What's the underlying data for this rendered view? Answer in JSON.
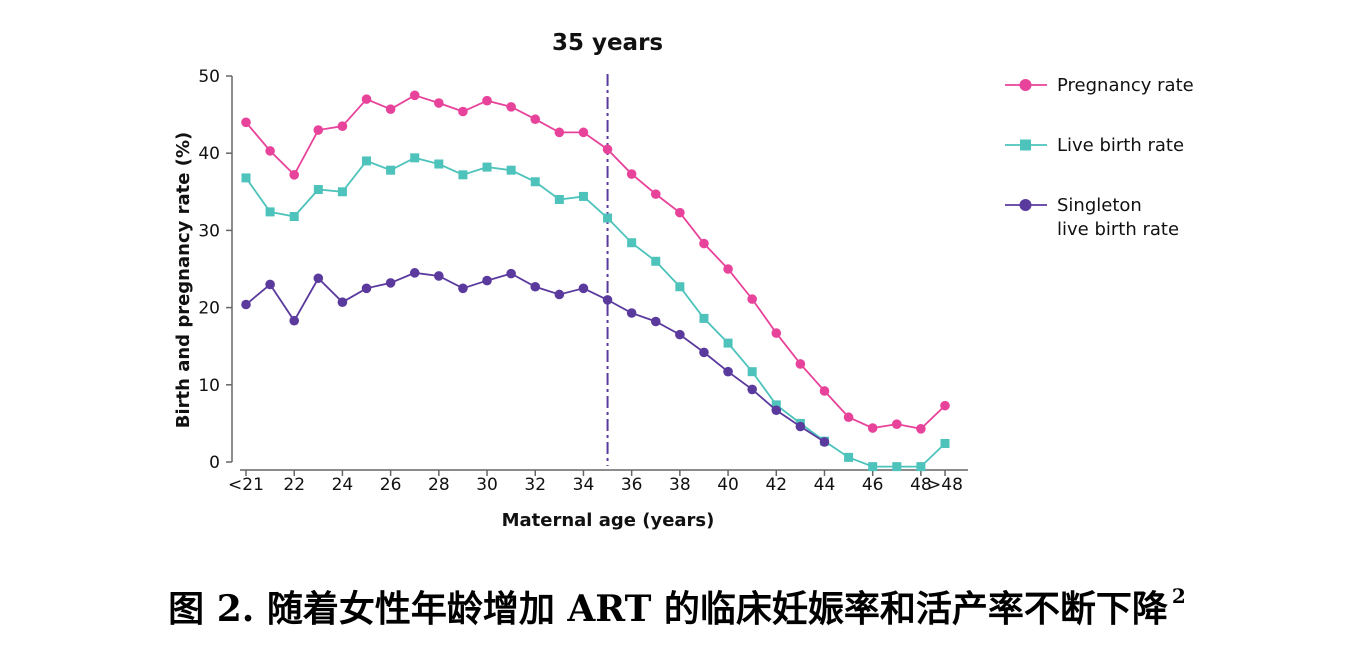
{
  "chart_data": {
    "type": "line",
    "xlabel": "Maternal age (years)",
    "ylabel": "Birth and pregnancy rate (%)",
    "ylim": [
      0,
      50
    ],
    "yticks": [
      0,
      10,
      20,
      30,
      40,
      50
    ],
    "x": [
      20,
      21,
      22,
      23,
      24,
      25,
      26,
      27,
      28,
      29,
      30,
      31,
      32,
      33,
      34,
      35,
      36,
      37,
      38,
      39,
      40,
      41,
      42,
      43,
      44,
      45,
      46,
      47,
      48,
      49
    ],
    "xticks": [
      {
        "x": 20,
        "label": "<21"
      },
      {
        "x": 22,
        "label": "22"
      },
      {
        "x": 24,
        "label": "24"
      },
      {
        "x": 26,
        "label": "26"
      },
      {
        "x": 28,
        "label": "28"
      },
      {
        "x": 30,
        "label": "30"
      },
      {
        "x": 32,
        "label": "32"
      },
      {
        "x": 34,
        "label": "34"
      },
      {
        "x": 36,
        "label": "36"
      },
      {
        "x": 38,
        "label": "38"
      },
      {
        "x": 40,
        "label": "40"
      },
      {
        "x": 42,
        "label": "42"
      },
      {
        "x": 44,
        "label": "44"
      },
      {
        "x": 46,
        "label": "46"
      },
      {
        "x": 48,
        "label": "48"
      },
      {
        "x": 49,
        "label": ">48"
      }
    ],
    "series": [
      {
        "name": "Pregnancy  rate",
        "color": "#e8439a",
        "marker": "circle",
        "values": [
          44.0,
          40.3,
          37.2,
          43.0,
          43.5,
          47.0,
          45.7,
          47.5,
          46.5,
          45.4,
          46.8,
          46.0,
          44.4,
          42.7,
          42.7,
          40.5,
          37.3,
          34.7,
          32.3,
          28.3,
          25.0,
          21.1,
          16.7,
          12.7,
          9.2,
          5.8,
          4.4,
          4.9,
          4.3,
          7.3
        ]
      },
      {
        "name": "Live birth rate",
        "color": "#4dc3bb",
        "marker": "square",
        "values": [
          36.8,
          32.4,
          31.8,
          35.3,
          35.0,
          39.0,
          37.8,
          39.4,
          38.6,
          37.2,
          38.2,
          37.8,
          36.3,
          34.0,
          34.4,
          31.6,
          28.4,
          26.0,
          22.7,
          18.6,
          15.4,
          11.7,
          7.4,
          5.0,
          2.7,
          0.6,
          -0.6,
          -0.6,
          -0.6,
          2.4
        ]
      },
      {
        "name": "Singleton live birth rate",
        "label_lines": [
          "Singleton",
          "live birth rate"
        ],
        "color": "#5b3a9e",
        "marker": "circle",
        "values": [
          20.4,
          23.0,
          18.3,
          23.8,
          20.7,
          22.5,
          23.2,
          24.5,
          24.1,
          22.5,
          23.5,
          24.4,
          22.7,
          21.7,
          22.5,
          21.0,
          19.3,
          18.2,
          16.5,
          14.2,
          11.7,
          9.4,
          6.7,
          4.6,
          2.6,
          null,
          null,
          null,
          null,
          null
        ]
      }
    ],
    "annotation": {
      "x": 35,
      "label": "35 years",
      "color": "#5b3a9e"
    },
    "legend_position": "right",
    "grid": false
  },
  "caption": {
    "text": "图 2.  随着女性年龄增加 ART 的临床妊娠率和活产率不断下降",
    "superscript": "2"
  }
}
